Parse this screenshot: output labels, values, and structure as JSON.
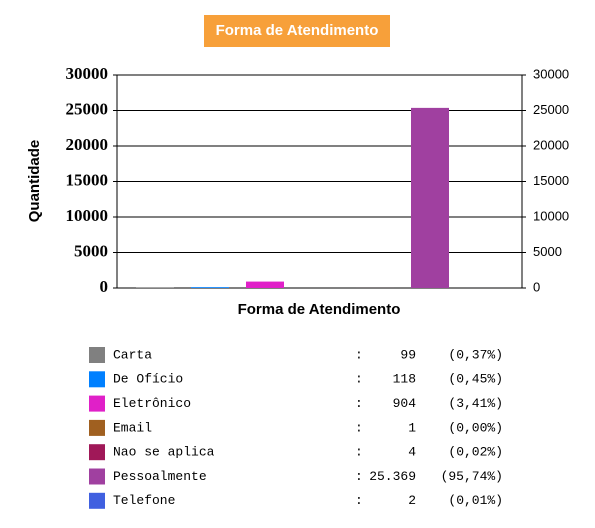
{
  "chart_data": {
    "type": "bar",
    "title": "Forma de Atendimento",
    "y_label": "Quantidade",
    "x_label": "Forma de Atendimento",
    "categories": [
      "Carta",
      "De Ofício",
      "Eletrônico",
      "Email",
      "Nao se aplica",
      "Pessoalmente",
      "Telefone"
    ],
    "values": [
      99,
      118,
      904,
      1,
      4,
      25369,
      2
    ],
    "value_labels": [
      "99",
      "118",
      "904",
      "1",
      "4",
      "25.369",
      "2"
    ],
    "percentages": [
      0.37,
      0.45,
      3.41,
      0.0,
      0.02,
      95.74,
      0.01
    ],
    "percentage_labels": [
      "(0,37%)",
      "(0,45%)",
      "(3,41%)",
      "(0,00%)",
      "(0,02%)",
      "(95,74%)",
      "(0,01%)"
    ],
    "colors": [
      "#808080",
      "#0080ff",
      "#e020c8",
      "#a06020",
      "#a01858",
      "#a040a0",
      "#4060e0"
    ],
    "ylim": [
      0,
      30000
    ],
    "yticks": [
      0,
      5000,
      10000,
      15000,
      20000,
      25000,
      30000
    ],
    "y2lim": [
      0,
      30000
    ],
    "y2ticks": [
      0,
      5000,
      10000,
      15000,
      20000,
      25000,
      30000
    ],
    "grid": true
  }
}
